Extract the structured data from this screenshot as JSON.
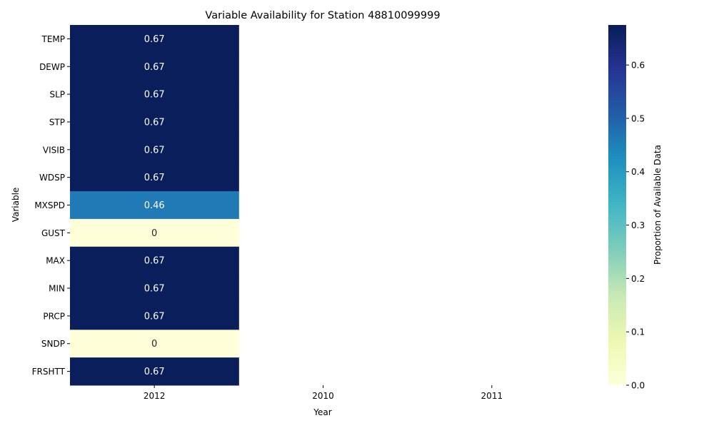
{
  "chart_data": {
    "type": "heatmap",
    "title": "Variable Availability for Station 48810099999",
    "xlabel": "Year",
    "ylabel": "Variable",
    "x_categories": [
      "2012",
      "2010",
      "2011"
    ],
    "y_categories": [
      "TEMP",
      "DEWP",
      "SLP",
      "STP",
      "VISIB",
      "WDSP",
      "MXSPD",
      "GUST",
      "MAX",
      "MIN",
      "PRCP",
      "SNDP",
      "FRSHTT"
    ],
    "values": [
      [
        0.67,
        null,
        null
      ],
      [
        0.67,
        null,
        null
      ],
      [
        0.67,
        null,
        null
      ],
      [
        0.67,
        null,
        null
      ],
      [
        0.67,
        null,
        null
      ],
      [
        0.67,
        null,
        null
      ],
      [
        0.46,
        null,
        null
      ],
      [
        0,
        null,
        null
      ],
      [
        0.67,
        null,
        null
      ],
      [
        0.67,
        null,
        null
      ],
      [
        0.67,
        null,
        null
      ],
      [
        0,
        null,
        null
      ],
      [
        0.67,
        null,
        null
      ]
    ],
    "data_labels": [
      [
        "0.67",
        "",
        ""
      ],
      [
        "0.67",
        "",
        ""
      ],
      [
        "0.67",
        "",
        ""
      ],
      [
        "0.67",
        "",
        ""
      ],
      [
        "0.67",
        "",
        ""
      ],
      [
        "0.67",
        "",
        ""
      ],
      [
        "0.46",
        "",
        ""
      ],
      [
        "0",
        "",
        ""
      ],
      [
        "0.67",
        "",
        ""
      ],
      [
        "0.67",
        "",
        ""
      ],
      [
        "0.67",
        "",
        ""
      ],
      [
        "0",
        "",
        ""
      ],
      [
        "0.67",
        "",
        ""
      ]
    ],
    "colorbar": {
      "label": "Proportion of Available Data",
      "min": 0.0,
      "max": 0.675,
      "ticks": [
        "0.0",
        "0.1",
        "0.2",
        "0.3",
        "0.4",
        "0.5",
        "0.6"
      ],
      "colormap": "YlGnBu"
    },
    "grid": false,
    "legend": "colorbar-right"
  }
}
